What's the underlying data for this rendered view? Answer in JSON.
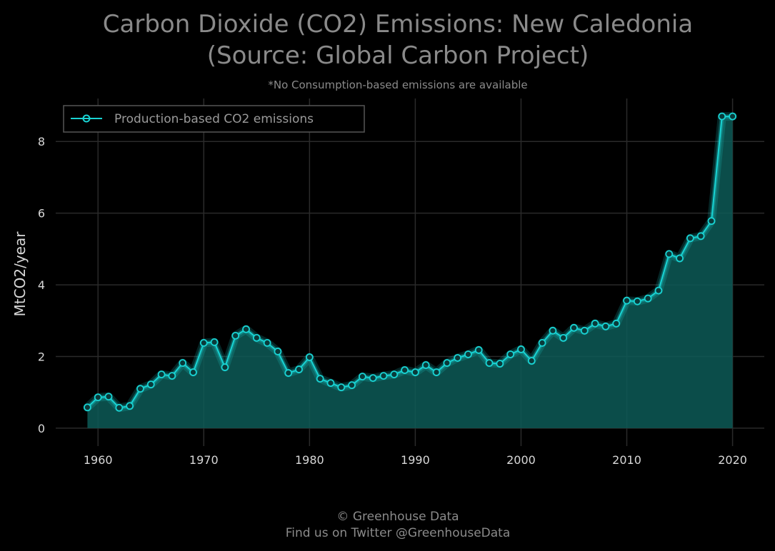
{
  "chart_data": {
    "type": "area",
    "title_line1": "Carbon Dioxide (CO2) Emissions: New Caledonia",
    "title_line2": "(Source: Global Carbon Project)",
    "subtitle": "*No Consumption-based emissions are available",
    "ylabel": "MtCO2/year",
    "xlabel": "",
    "xlim": [
      1956,
      2023
    ],
    "ylim": [
      -0.5,
      9.2
    ],
    "xticks": [
      1960,
      1970,
      1980,
      1990,
      2000,
      2010,
      2020
    ],
    "yticks": [
      0,
      2,
      4,
      6,
      8
    ],
    "grid": true,
    "legend_position": "top-left",
    "colors": {
      "line": "#19d3d3",
      "fill": "#0d5a57",
      "background": "#000000"
    },
    "series": [
      {
        "name": "Production-based CO2 emissions",
        "x": [
          1959,
          1960,
          1961,
          1962,
          1963,
          1964,
          1965,
          1966,
          1967,
          1968,
          1969,
          1970,
          1971,
          1972,
          1973,
          1974,
          1975,
          1976,
          1977,
          1978,
          1979,
          1980,
          1981,
          1982,
          1983,
          1984,
          1985,
          1986,
          1987,
          1988,
          1989,
          1990,
          1991,
          1992,
          1993,
          1994,
          1995,
          1996,
          1997,
          1998,
          1999,
          2000,
          2001,
          2002,
          2003,
          2004,
          2005,
          2006,
          2007,
          2008,
          2009,
          2010,
          2011,
          2012,
          2013,
          2014,
          2015,
          2016,
          2017,
          2018,
          2019,
          2020
        ],
        "values": [
          0.58,
          0.86,
          0.88,
          0.57,
          0.62,
          1.1,
          1.22,
          1.5,
          1.46,
          1.82,
          1.56,
          2.38,
          2.4,
          1.7,
          2.58,
          2.76,
          2.52,
          2.38,
          2.14,
          1.54,
          1.64,
          1.98,
          1.38,
          1.26,
          1.14,
          1.2,
          1.44,
          1.4,
          1.46,
          1.5,
          1.62,
          1.56,
          1.76,
          1.56,
          1.82,
          1.96,
          2.06,
          2.18,
          1.82,
          1.8,
          2.06,
          2.2,
          1.88,
          2.38,
          2.72,
          2.52,
          2.8,
          2.72,
          2.92,
          2.84,
          2.92,
          3.56,
          3.54,
          3.62,
          3.84,
          4.86,
          4.74,
          5.3,
          5.36,
          5.78,
          8.7,
          8.7
        ]
      }
    ]
  },
  "footer": {
    "copyright": "© Greenhouse Data",
    "twitter": "Find us on Twitter @GreenhouseData"
  }
}
